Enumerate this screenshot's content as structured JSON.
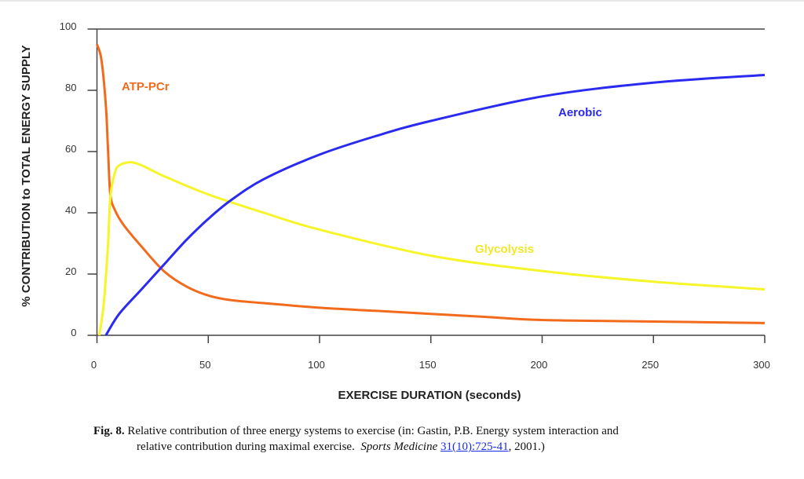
{
  "chart_data": {
    "type": "line",
    "xlabel": "EXERCISE DURATION (seconds)",
    "ylabel": "% CONTRIBUTION to TOTAL ENERGY SUPPLY",
    "xlim": [
      0,
      300
    ],
    "ylim": [
      0,
      100
    ],
    "xticks": [
      0,
      50,
      100,
      150,
      200,
      250,
      300
    ],
    "yticks": [
      0,
      20,
      40,
      60,
      80,
      100
    ],
    "grid": false,
    "series": [
      {
        "name": "ATP-PCr",
        "color": "#f26b1d",
        "x": [
          0,
          2,
          4,
          5,
          6,
          8,
          12,
          20,
          30,
          40,
          50,
          60,
          75,
          100,
          125,
          150,
          175,
          200,
          250,
          300
        ],
        "y": [
          95,
          90,
          75,
          60,
          46,
          41,
          36,
          29,
          21,
          16,
          13,
          11.5,
          10.5,
          9,
          8,
          7,
          6,
          5,
          4.5,
          4
        ]
      },
      {
        "name": "Glycolysis",
        "color": "#f5f52a",
        "x": [
          1,
          3,
          5,
          6,
          8,
          10,
          15,
          20,
          30,
          50,
          75,
          100,
          150,
          200,
          250,
          300
        ],
        "y": [
          0,
          10,
          30,
          45,
          53,
          55.5,
          56.5,
          55.5,
          52,
          46,
          40,
          34.5,
          26,
          21,
          17.5,
          15
        ]
      },
      {
        "name": "Aerobic",
        "color": "#2a2af0",
        "x": [
          4,
          10,
          20,
          30,
          40,
          50,
          60,
          75,
          100,
          125,
          150,
          200,
          250,
          300
        ],
        "y": [
          0,
          7,
          15,
          23,
          31,
          38,
          44,
          51,
          59,
          65,
          70,
          78,
          82.5,
          85
        ]
      }
    ]
  },
  "caption": {
    "fig": "Fig. 8.",
    "line1": "Relative contribution of three energy systems to exercise (in: Gastin, P.B. Energy system interaction and",
    "line2": "relative contribution during maximal exercise.",
    "journal": "Sports Medicine",
    "ref_link": "31(10):725-41",
    "tail": ", 2001.)"
  }
}
